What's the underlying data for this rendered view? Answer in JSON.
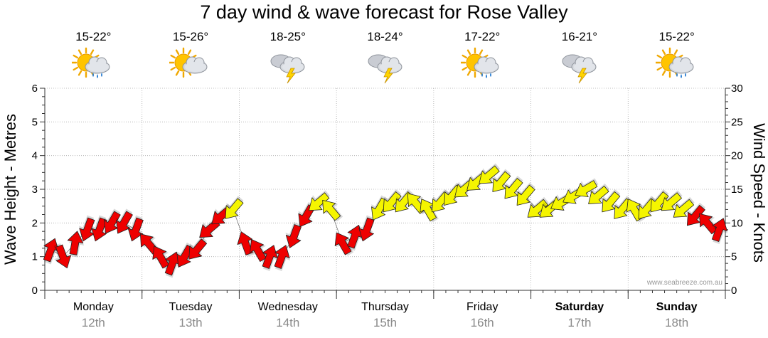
{
  "chart_data": {
    "type": "line",
    "title": "7 day wind & wave forecast for Rose Valley",
    "ylabel_left": "Wave Height - Metres",
    "ylabel_right": "Wind Speed - Knots",
    "ylim_left": [
      0,
      6
    ],
    "ylim_right": [
      0,
      30
    ],
    "yticks_left": [
      "0",
      "1",
      "2",
      "3",
      "4",
      "5",
      "6"
    ],
    "yticks_right": [
      "0",
      "5",
      "10",
      "15",
      "20",
      "25",
      "30"
    ],
    "grid": true,
    "watermark": "www.seabreeze.com.au",
    "days": [
      {
        "name": "Monday",
        "date": "12th",
        "temp": "15-22°",
        "icon": "sun-cloud-showers-icon",
        "bold": false
      },
      {
        "name": "Tuesday",
        "date": "13th",
        "temp": "15-26°",
        "icon": "sun-cloud-icon",
        "bold": false
      },
      {
        "name": "Wednesday",
        "date": "14th",
        "temp": "18-25°",
        "icon": "thunderstorm-icon",
        "bold": false
      },
      {
        "name": "Thursday",
        "date": "15th",
        "temp": "18-24°",
        "icon": "thunderstorm-icon",
        "bold": false
      },
      {
        "name": "Friday",
        "date": "16th",
        "temp": "17-22°",
        "icon": "sun-cloud-showers-icon",
        "bold": false
      },
      {
        "name": "Saturday",
        "date": "17th",
        "temp": "16-21°",
        "icon": "thunderstorm-icon",
        "bold": true
      },
      {
        "name": "Sunday",
        "date": "18th",
        "temp": "15-22°",
        "icon": "sun-cloud-showers-icon",
        "bold": true
      }
    ],
    "series": [
      {
        "name": "Wind Speed",
        "unit": "knots",
        "points_per_day": 8,
        "values": [
          6,
          5,
          7,
          9,
          9,
          10,
          10,
          9,
          7,
          5,
          4,
          5,
          6,
          9,
          11,
          12,
          7,
          6,
          5,
          5,
          8,
          11,
          13,
          12,
          7,
          8,
          9,
          12,
          13,
          13,
          13,
          12,
          13,
          14,
          15,
          16,
          17,
          16,
          15,
          14,
          12,
          12,
          13,
          14,
          15,
          14,
          13,
          12,
          12,
          12,
          13,
          13,
          12,
          11,
          10,
          9
        ],
        "direction_deg": [
          20,
          160,
          10,
          200,
          200,
          210,
          210,
          200,
          320,
          330,
          20,
          210,
          220,
          230,
          230,
          220,
          340,
          330,
          20,
          20,
          200,
          210,
          230,
          320,
          330,
          20,
          200,
          210,
          220,
          220,
          320,
          330,
          220,
          220,
          230,
          230,
          230,
          220,
          220,
          220,
          230,
          230,
          240,
          240,
          240,
          230,
          220,
          220,
          330,
          220,
          220,
          230,
          230,
          220,
          320,
          20
        ]
      }
    ],
    "colors": {
      "wind_low": "#ee0000",
      "wind_mid": "#f5f500",
      "grid": "#aaaaaa"
    }
  }
}
